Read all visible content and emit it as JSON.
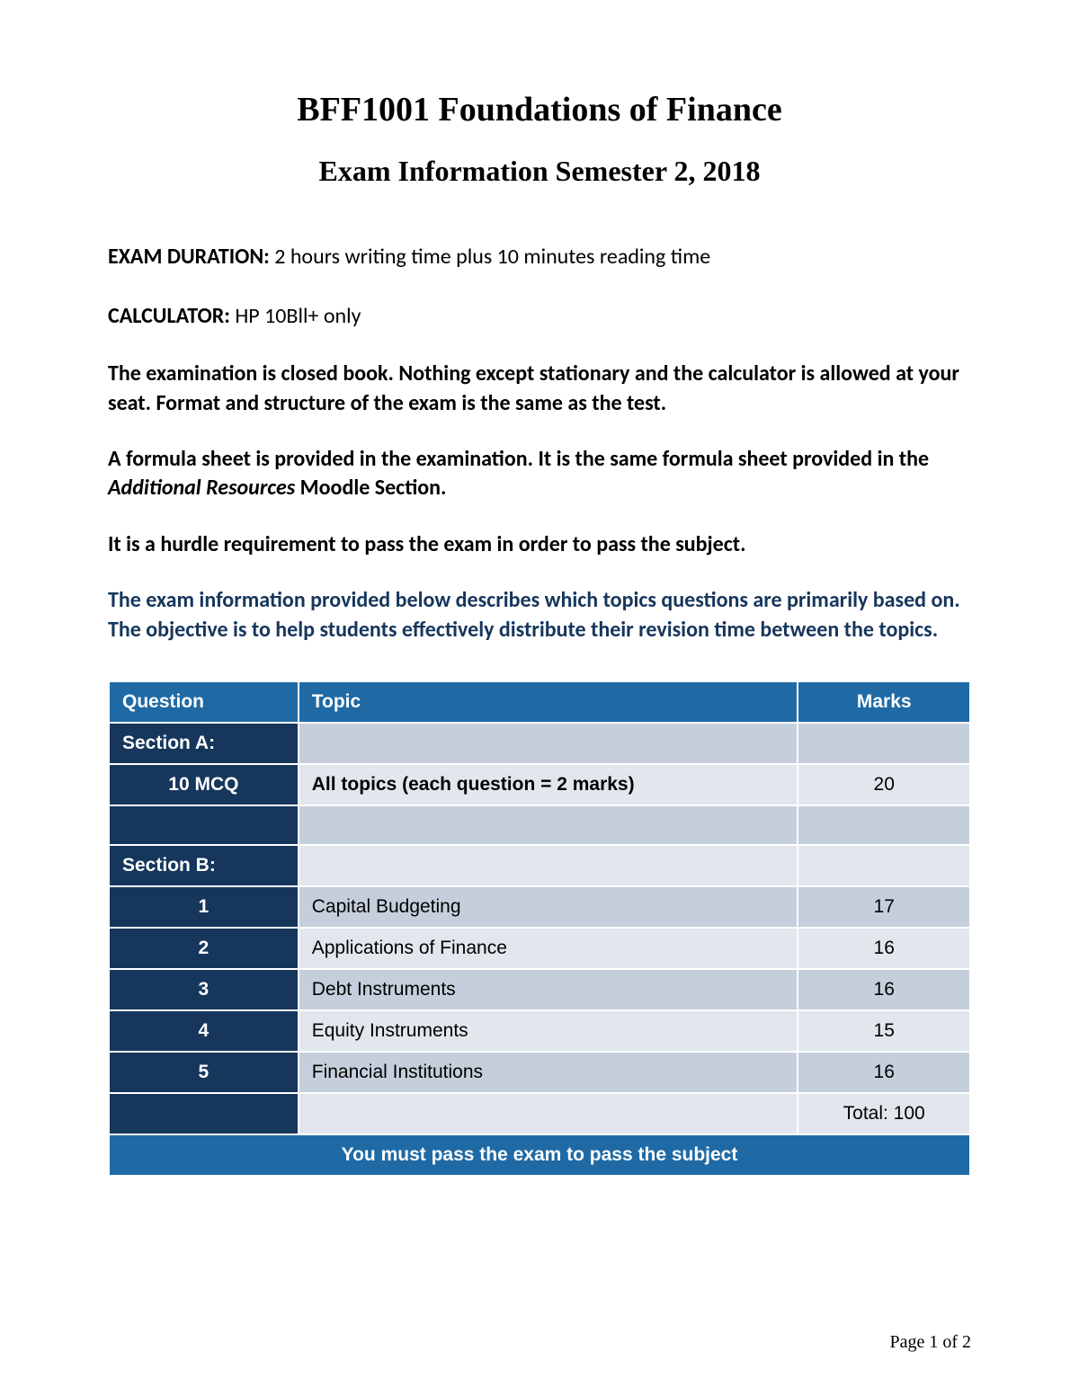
{
  "header": {
    "title": "BFF1001 Foundations of Finance",
    "subtitle": "Exam Information Semester 2, 2018"
  },
  "duration": {
    "label": "EXAM DURATION:",
    "value": " 2 hours writing time plus 10 minutes reading time"
  },
  "calculator": {
    "label": "CALCULATOR:",
    "value": "  HP 10Bll+ only"
  },
  "para1": "The examination is closed book. Nothing except stationary and the calculator is allowed at your seat. Format and structure of the exam is the same as the test.",
  "para2_a": "A formula sheet is provided in the examination. It is the same formula sheet provided in the ",
  "para2_italic": "Additional Resources",
  "para2_b": " Moodle Section.",
  "para3": "It is a hurdle requirement to pass the exam in order to pass the subject.",
  "para4": "The exam information provided below describes which topics questions are primarily based on. The objective is to help students effectively distribute their revision time between the topics.",
  "table": {
    "headers": {
      "q": "Question",
      "t": "Topic",
      "m": "Marks"
    },
    "secA_label": "Section A:",
    "secA_row": {
      "q": "10 MCQ",
      "t": "All topics (each question = 2 marks)",
      "m": "20"
    },
    "secB_label": "Section B:",
    "rows": [
      {
        "q": "1",
        "t": "Capital Budgeting",
        "m": "17"
      },
      {
        "q": "2",
        "t": "Applications of Finance",
        "m": "16"
      },
      {
        "q": "3",
        "t": "Debt Instruments",
        "m": "16"
      },
      {
        "q": "4",
        "t": "Equity Instruments",
        "m": "15"
      },
      {
        "q": "5",
        "t": "Financial Institutions",
        "m": "16"
      }
    ],
    "total": "Total: 100",
    "footer": "You must pass the exam to pass the subject"
  },
  "page": "Page 1 of 2",
  "colors": {
    "header_bg": "#1f6aa5",
    "qcol_bg": "#16365c",
    "row_odd": "#c5cfdc",
    "row_even": "#e2e7ee",
    "navy_text": "#16365c"
  }
}
